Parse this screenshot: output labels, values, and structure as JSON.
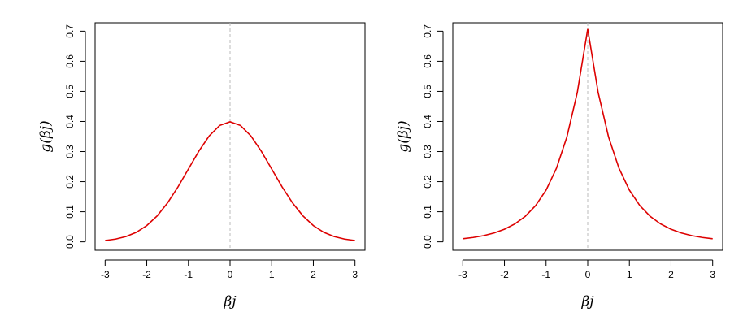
{
  "chart_data": [
    {
      "type": "line",
      "xlabel": "βj",
      "ylabel": "g(βj)",
      "color": "#dd0000",
      "vline": 0,
      "vline_color": "#bbbbbb",
      "x": [
        -3,
        -2.75,
        -2.5,
        -2.25,
        -2,
        -1.75,
        -1.5,
        -1.25,
        -1,
        -0.75,
        -0.5,
        -0.25,
        0,
        0.25,
        0.5,
        0.75,
        1,
        1.25,
        1.5,
        1.75,
        2,
        2.25,
        2.5,
        2.75,
        3
      ],
      "values": [
        0.0044,
        0.0091,
        0.0175,
        0.0317,
        0.054,
        0.0863,
        0.1295,
        0.1826,
        0.242,
        0.3011,
        0.3521,
        0.3867,
        0.3989,
        0.3867,
        0.3521,
        0.3011,
        0.242,
        0.1826,
        0.1295,
        0.0863,
        0.054,
        0.0317,
        0.0175,
        0.0091,
        0.0044
      ],
      "xlim": [
        -3.24,
        3.24
      ],
      "ylim": [
        -0.028,
        0.728
      ],
      "xticks": [
        -3,
        -2,
        -1,
        0,
        1,
        2,
        3
      ],
      "yticks": [
        {
          "value": 0,
          "label": "0.0"
        },
        0.1,
        0.2,
        0.3,
        0.4,
        0.5,
        0.6,
        0.7
      ]
    },
    {
      "type": "line",
      "xlabel": "βj",
      "ylabel": "g(βj)",
      "color": "#dd0000",
      "vline": 0,
      "vline_color": "#bbbbbb",
      "x": [
        -3,
        -2.75,
        -2.5,
        -2.25,
        -2,
        -1.75,
        -1.5,
        -1.25,
        -1,
        -0.75,
        -0.5,
        -0.25,
        0,
        0.25,
        0.5,
        0.75,
        1,
        1.25,
        1.5,
        1.75,
        2,
        2.25,
        2.5,
        2.75,
        3
      ],
      "values": [
        0.0102,
        0.0145,
        0.0206,
        0.0294,
        0.0418,
        0.0595,
        0.0848,
        0.1207,
        0.1719,
        0.2448,
        0.3487,
        0.4965,
        0.7071,
        0.4965,
        0.3487,
        0.2448,
        0.1719,
        0.1207,
        0.0848,
        0.0595,
        0.0418,
        0.0294,
        0.0206,
        0.0145,
        0.0102
      ],
      "xlim": [
        -3.24,
        3.24
      ],
      "ylim": [
        -0.028,
        0.728
      ],
      "xticks": [
        -3,
        -2,
        -1,
        0,
        1,
        2,
        3
      ],
      "yticks": [
        {
          "value": 0,
          "label": "0.0"
        },
        0.1,
        0.2,
        0.3,
        0.4,
        0.5,
        0.6,
        0.7
      ]
    }
  ]
}
